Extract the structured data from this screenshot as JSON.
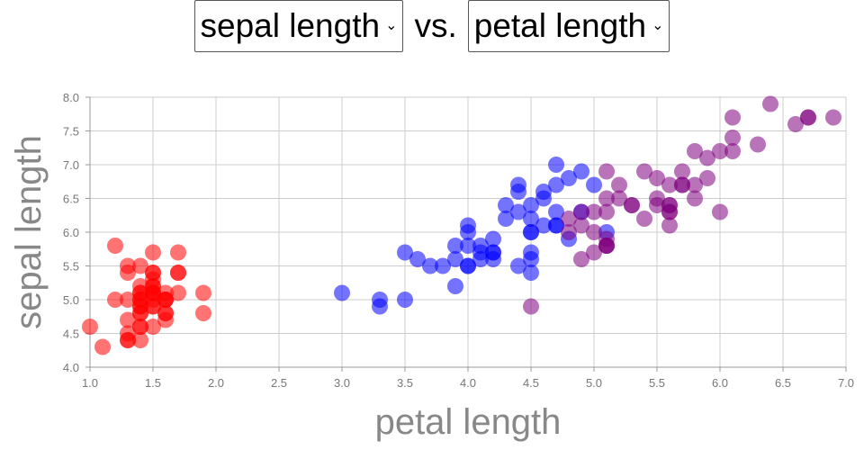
{
  "header": {
    "y_select": "sepal length",
    "vs_label": "vs.",
    "x_select": "petal length",
    "chevron_icon": "chevron-down-icon"
  },
  "chart_data": {
    "type": "scatter",
    "xlabel": "petal length",
    "ylabel": "sepal length",
    "xlim": [
      1.0,
      7.0
    ],
    "ylim": [
      4.0,
      8.0
    ],
    "x_ticks": [
      "1.0",
      "1.5",
      "2.0",
      "2.5",
      "3.0",
      "3.5",
      "4.0",
      "4.5",
      "5.0",
      "5.5",
      "6.0",
      "6.5",
      "7.0"
    ],
    "y_ticks": [
      "4.0",
      "4.5",
      "5.0",
      "5.5",
      "6.0",
      "6.5",
      "7.0",
      "7.5",
      "8.0"
    ],
    "grid": true,
    "series": [
      {
        "color": "#ff0000",
        "points": [
          [
            1.4,
            5.1
          ],
          [
            1.4,
            4.9
          ],
          [
            1.3,
            4.7
          ],
          [
            1.5,
            4.6
          ],
          [
            1.4,
            5.0
          ],
          [
            1.7,
            5.4
          ],
          [
            1.4,
            4.6
          ],
          [
            1.5,
            5.0
          ],
          [
            1.4,
            4.4
          ],
          [
            1.5,
            4.9
          ],
          [
            1.5,
            5.4
          ],
          [
            1.6,
            4.8
          ],
          [
            1.4,
            4.8
          ],
          [
            1.1,
            4.3
          ],
          [
            1.2,
            5.8
          ],
          [
            1.5,
            5.7
          ],
          [
            1.3,
            5.4
          ],
          [
            1.4,
            5.1
          ],
          [
            1.7,
            5.7
          ],
          [
            1.5,
            5.1
          ],
          [
            1.7,
            5.4
          ],
          [
            1.5,
            5.1
          ],
          [
            1.0,
            4.6
          ],
          [
            1.7,
            5.1
          ],
          [
            1.9,
            4.8
          ],
          [
            1.6,
            5.0
          ],
          [
            1.6,
            5.0
          ],
          [
            1.5,
            5.2
          ],
          [
            1.4,
            5.2
          ],
          [
            1.6,
            4.7
          ],
          [
            1.6,
            4.8
          ],
          [
            1.5,
            5.4
          ],
          [
            1.5,
            5.2
          ],
          [
            1.4,
            5.5
          ],
          [
            1.5,
            4.9
          ],
          [
            1.2,
            5.0
          ],
          [
            1.3,
            5.5
          ],
          [
            1.4,
            4.9
          ],
          [
            1.3,
            4.4
          ],
          [
            1.5,
            5.1
          ],
          [
            1.3,
            5.0
          ],
          [
            1.3,
            4.5
          ],
          [
            1.3,
            4.4
          ],
          [
            1.6,
            5.0
          ],
          [
            1.9,
            5.1
          ],
          [
            1.4,
            4.8
          ],
          [
            1.6,
            5.1
          ],
          [
            1.4,
            4.6
          ],
          [
            1.5,
            5.3
          ],
          [
            1.4,
            5.0
          ]
        ]
      },
      {
        "color": "#0000ff",
        "points": [
          [
            4.7,
            7.0
          ],
          [
            4.5,
            6.4
          ],
          [
            4.9,
            6.9
          ],
          [
            4.0,
            5.5
          ],
          [
            4.6,
            6.5
          ],
          [
            4.5,
            5.7
          ],
          [
            4.7,
            6.3
          ],
          [
            3.3,
            4.9
          ],
          [
            4.6,
            6.6
          ],
          [
            3.9,
            5.2
          ],
          [
            3.5,
            5.0
          ],
          [
            4.2,
            5.9
          ],
          [
            4.0,
            6.0
          ],
          [
            4.7,
            6.1
          ],
          [
            3.6,
            5.6
          ],
          [
            4.4,
            6.7
          ],
          [
            4.5,
            5.6
          ],
          [
            4.1,
            5.8
          ],
          [
            4.5,
            6.2
          ],
          [
            3.9,
            5.6
          ],
          [
            4.8,
            5.9
          ],
          [
            4.0,
            6.1
          ],
          [
            4.9,
            6.3
          ],
          [
            4.7,
            6.1
          ],
          [
            4.3,
            6.4
          ],
          [
            4.4,
            6.6
          ],
          [
            4.8,
            6.8
          ],
          [
            5.0,
            6.7
          ],
          [
            4.5,
            6.0
          ],
          [
            3.5,
            5.7
          ],
          [
            3.8,
            5.5
          ],
          [
            3.7,
            5.5
          ],
          [
            3.9,
            5.8
          ],
          [
            5.1,
            6.0
          ],
          [
            4.5,
            5.4
          ],
          [
            4.5,
            6.0
          ],
          [
            4.7,
            6.7
          ],
          [
            4.4,
            6.3
          ],
          [
            4.1,
            5.6
          ],
          [
            4.0,
            5.5
          ],
          [
            4.4,
            5.5
          ],
          [
            4.6,
            6.1
          ],
          [
            4.0,
            5.8
          ],
          [
            3.3,
            5.0
          ],
          [
            4.2,
            5.6
          ],
          [
            4.2,
            5.7
          ],
          [
            4.2,
            5.7
          ],
          [
            4.3,
            6.2
          ],
          [
            3.0,
            5.1
          ],
          [
            4.1,
            5.7
          ]
        ]
      },
      {
        "color": "#800080",
        "points": [
          [
            6.0,
            6.3
          ],
          [
            5.1,
            5.8
          ],
          [
            5.9,
            7.1
          ],
          [
            5.6,
            6.3
          ],
          [
            5.8,
            6.5
          ],
          [
            6.6,
            7.6
          ],
          [
            4.5,
            4.9
          ],
          [
            6.3,
            7.3
          ],
          [
            5.8,
            6.7
          ],
          [
            6.1,
            7.2
          ],
          [
            5.1,
            6.5
          ],
          [
            5.3,
            6.4
          ],
          [
            5.5,
            6.8
          ],
          [
            5.0,
            5.7
          ],
          [
            5.1,
            5.8
          ],
          [
            5.3,
            6.4
          ],
          [
            5.5,
            6.5
          ],
          [
            6.7,
            7.7
          ],
          [
            6.9,
            7.7
          ],
          [
            5.0,
            6.0
          ],
          [
            5.7,
            6.9
          ],
          [
            4.9,
            5.6
          ],
          [
            6.7,
            7.7
          ],
          [
            4.9,
            6.3
          ],
          [
            5.7,
            6.7
          ],
          [
            6.0,
            7.2
          ],
          [
            4.8,
            6.2
          ],
          [
            4.9,
            6.1
          ],
          [
            5.6,
            6.4
          ],
          [
            5.8,
            7.2
          ],
          [
            6.1,
            7.4
          ],
          [
            6.4,
            7.9
          ],
          [
            5.6,
            6.4
          ],
          [
            5.1,
            6.3
          ],
          [
            5.6,
            6.1
          ],
          [
            6.1,
            7.7
          ],
          [
            5.6,
            6.3
          ],
          [
            5.5,
            6.4
          ],
          [
            4.8,
            6.0
          ],
          [
            5.4,
            6.9
          ],
          [
            5.6,
            6.7
          ],
          [
            5.1,
            6.9
          ],
          [
            5.1,
            5.8
          ],
          [
            5.9,
            6.8
          ],
          [
            5.7,
            6.7
          ],
          [
            5.2,
            6.7
          ],
          [
            5.0,
            6.3
          ],
          [
            5.2,
            6.5
          ],
          [
            5.4,
            6.2
          ],
          [
            5.1,
            5.9
          ]
        ]
      }
    ]
  }
}
